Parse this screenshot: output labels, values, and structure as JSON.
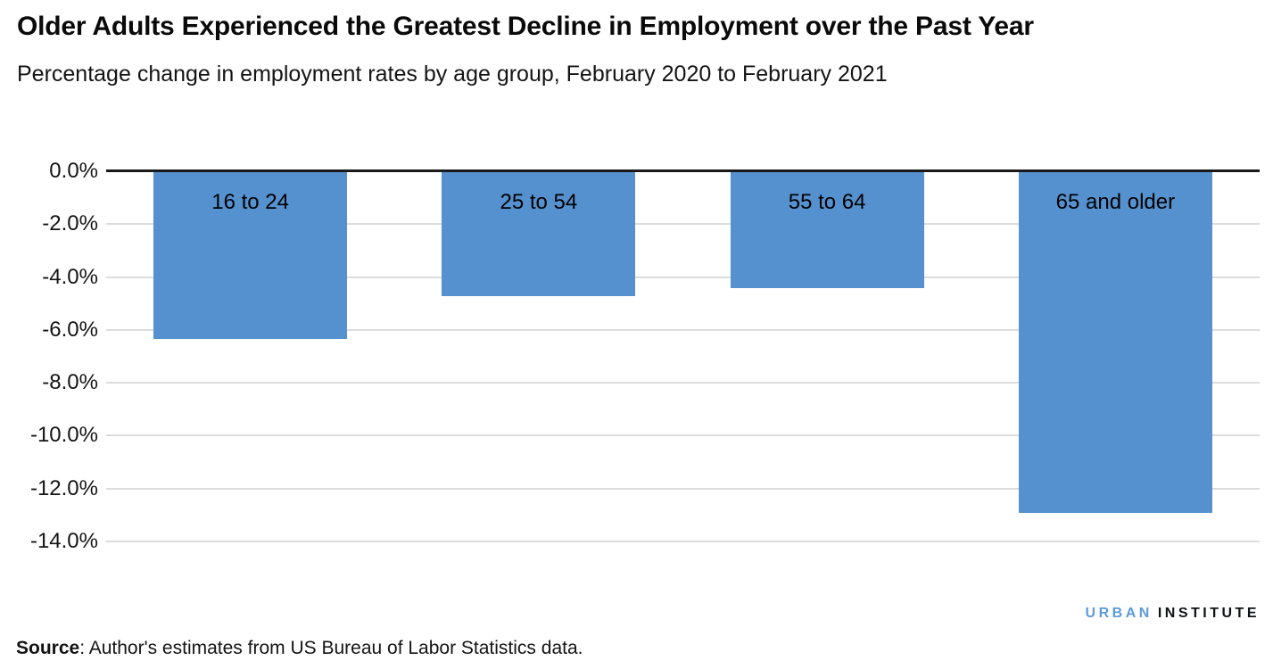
{
  "header": {
    "title": "Older Adults Experienced the Greatest Decline in Employment over the Past Year",
    "subtitle": "Percentage change in employment rates by age group, February 2020 to February 2021"
  },
  "chart_data": {
    "type": "bar",
    "title": "Older Adults Experienced the Greatest Decline in Employment over the Past Year",
    "subtitle": "Percentage change in employment rates by age group, February 2020 to February 2021",
    "categories": [
      "16 to 24",
      "25 to 54",
      "55 to 64",
      "65 and older"
    ],
    "values": [
      -6.3,
      -4.7,
      -4.4,
      -12.9
    ],
    "value_unit": "percent",
    "xlabel": "",
    "ylabel": "",
    "ylim": [
      -14,
      0
    ],
    "y_tick_values": [
      0,
      -2,
      -4,
      -6,
      -8,
      -10,
      -12,
      -14
    ],
    "y_tick_labels": [
      "0.0%",
      "-2.0%",
      "-4.0%",
      "-6.0%",
      "-8.0%",
      "-10.0%",
      "-12.0%",
      "-14.0%"
    ],
    "grid": true,
    "legend": false,
    "category_label_position": "inside-top"
  },
  "colors": {
    "bar": "#5591cf",
    "gridline": "#dcdcdc",
    "axis_line": "#1a1a1a",
    "logo_blue": "#5b9cd9",
    "logo_black": "#101314"
  },
  "footer": {
    "logo_part1": "URBAN",
    "logo_part2": "INSTITUTE",
    "source_label": "Source",
    "source_text": ": Author's estimates from US Bureau of Labor Statistics data."
  }
}
